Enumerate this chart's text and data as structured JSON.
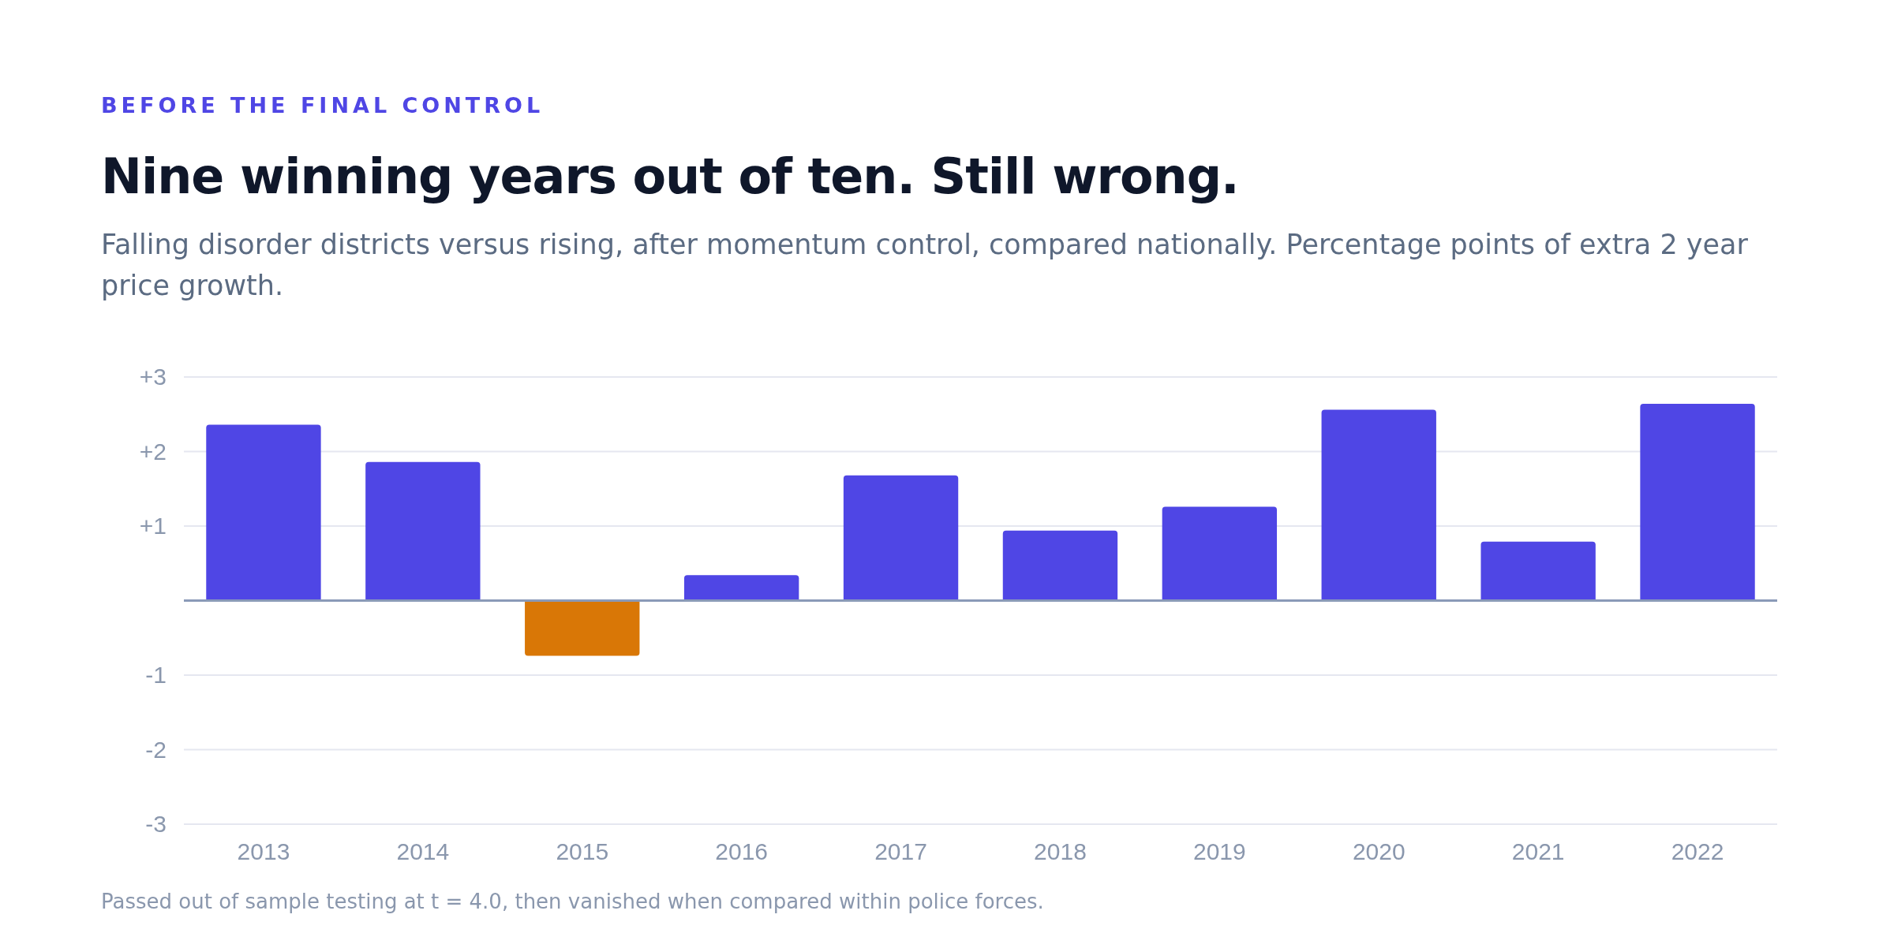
{
  "chart_data": {
    "type": "bar",
    "title": "Nine winning years out of ten. Still wrong.",
    "subtitle": "Falling disorder districts versus rising, after momentum control, compared nationally. Percentage points of extra 2 year price growth.",
    "annotations": [
      "BEFORE THE FINAL CONTROL",
      "Passed out of sample testing at t = 4.0, then vanished when compared within police forces."
    ],
    "categories": [
      "2013",
      "2014",
      "2015",
      "2016",
      "2017",
      "2018",
      "2019",
      "2020",
      "2021",
      "2022"
    ],
    "values": [
      2.36,
      1.86,
      -0.74,
      0.34,
      1.68,
      0.94,
      1.26,
      2.56,
      0.79,
      2.64
    ],
    "colors": [
      "#4f46e5",
      "#4f46e5",
      "#d97706",
      "#4f46e5",
      "#4f46e5",
      "#4f46e5",
      "#4f46e5",
      "#4f46e5",
      "#4f46e5",
      "#4f46e5"
    ],
    "ylim": [
      -3,
      3
    ],
    "yticks": [
      {
        "value": -3,
        "label": "-3"
      },
      {
        "value": -2,
        "label": "-2"
      },
      {
        "value": -1,
        "label": "-1"
      },
      {
        "value": 0,
        "label": null
      },
      {
        "value": 1,
        "label": "+1"
      },
      {
        "value": 2,
        "label": "+2"
      },
      {
        "value": 3,
        "label": "+3"
      }
    ],
    "grid": "y",
    "ref_lines": [
      {
        "axis": "y",
        "value": 0,
        "color": "#8a9ab8"
      }
    ]
  }
}
